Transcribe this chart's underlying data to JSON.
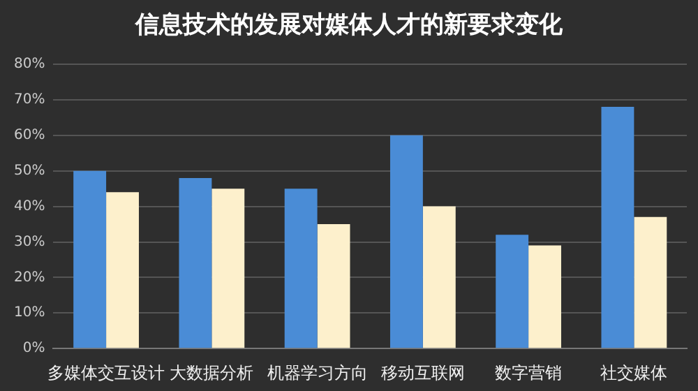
{
  "chart_data": {
    "type": "bar",
    "title": "信息技术的发展对媒体人才的新要求变化",
    "categories": [
      "多媒体交互设计",
      "大数据分析",
      "机器学习方向",
      "移动互联网",
      "数字营销",
      "社交媒体"
    ],
    "series": [
      {
        "color": "#4a8cd6",
        "values": [
          50,
          48,
          45,
          60,
          32,
          68
        ]
      },
      {
        "color": "#fdf0cc",
        "values": [
          44,
          45,
          35,
          40,
          29,
          37
        ]
      }
    ],
    "ylim": [
      0,
      80
    ],
    "yticks": [
      {
        "value": 0,
        "label": "0%"
      },
      {
        "value": 10,
        "label": "10%"
      },
      {
        "value": 20,
        "label": "20%"
      },
      {
        "value": 30,
        "label": "30%"
      },
      {
        "value": 40,
        "label": "40%"
      },
      {
        "value": 50,
        "label": "50%"
      },
      {
        "value": 60,
        "label": "60%"
      },
      {
        "value": 70,
        "label": "70%"
      },
      {
        "value": 80,
        "label": "80%"
      }
    ],
    "grid": "y",
    "legend": false
  }
}
